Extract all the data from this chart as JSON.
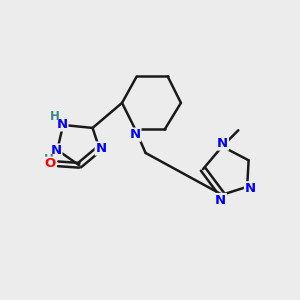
{
  "bg_color": "#ececec",
  "bond_color": "#1a1a1a",
  "N_color": "#0000ff",
  "O_color": "#ff0000",
  "H_color": "#3a8a8a",
  "line_width": 1.8,
  "figsize": [
    3.0,
    3.0
  ],
  "dpi": 100,
  "xlim": [
    0,
    10
  ],
  "ylim": [
    0,
    10
  ]
}
